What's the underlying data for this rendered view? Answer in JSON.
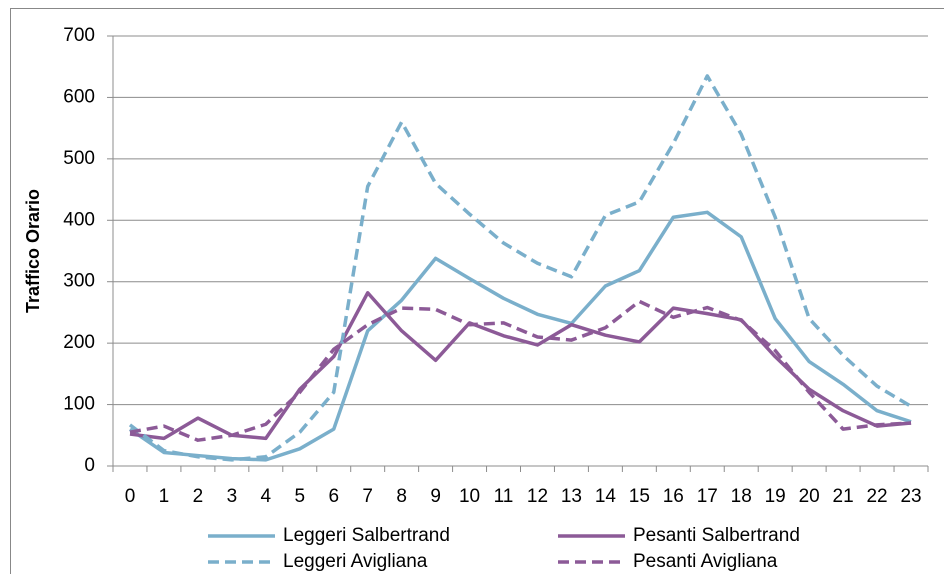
{
  "chart_data": {
    "type": "line",
    "y_label": "Traffico Orario",
    "categories": [
      "0",
      "1",
      "2",
      "3",
      "4",
      "5",
      "6",
      "7",
      "8",
      "9",
      "10",
      "11",
      "12",
      "13",
      "14",
      "15",
      "16",
      "17",
      "18",
      "19",
      "20",
      "21",
      "22",
      "23"
    ],
    "ylim": [
      0,
      700
    ],
    "yticks": [
      0,
      100,
      200,
      300,
      400,
      500,
      600,
      700
    ],
    "grid": true,
    "legend": "bottom",
    "series": [
      {
        "name": "Leggeri Salbertrand",
        "color": "#7aafcb",
        "line_style": "solid",
        "values": [
          60,
          22,
          17,
          12,
          10,
          28,
          60,
          220,
          270,
          338,
          305,
          273,
          247,
          232,
          293,
          318,
          405,
          413,
          373,
          240,
          170,
          133,
          90,
          72
        ]
      },
      {
        "name": "Pesanti Salbertrand",
        "color": "#8c5a97",
        "line_style": "solid",
        "values": [
          52,
          45,
          78,
          50,
          45,
          125,
          178,
          282,
          220,
          172,
          233,
          212,
          197,
          230,
          213,
          202,
          257,
          248,
          238,
          178,
          125,
          90,
          65,
          70
        ]
      },
      {
        "name": "Leggeri Avigliana",
        "color": "#7aafcb",
        "line_style": "dashed",
        "values": [
          67,
          25,
          15,
          10,
          15,
          55,
          120,
          455,
          560,
          460,
          410,
          363,
          330,
          308,
          408,
          430,
          525,
          635,
          540,
          405,
          240,
          180,
          130,
          97
        ]
      },
      {
        "name": "Pesanti Avigliana",
        "color": "#8c5a97",
        "line_style": "dashed",
        "values": [
          55,
          65,
          42,
          50,
          68,
          120,
          190,
          230,
          257,
          255,
          230,
          233,
          210,
          205,
          225,
          268,
          242,
          258,
          237,
          188,
          120,
          60,
          67,
          70
        ]
      }
    ]
  }
}
